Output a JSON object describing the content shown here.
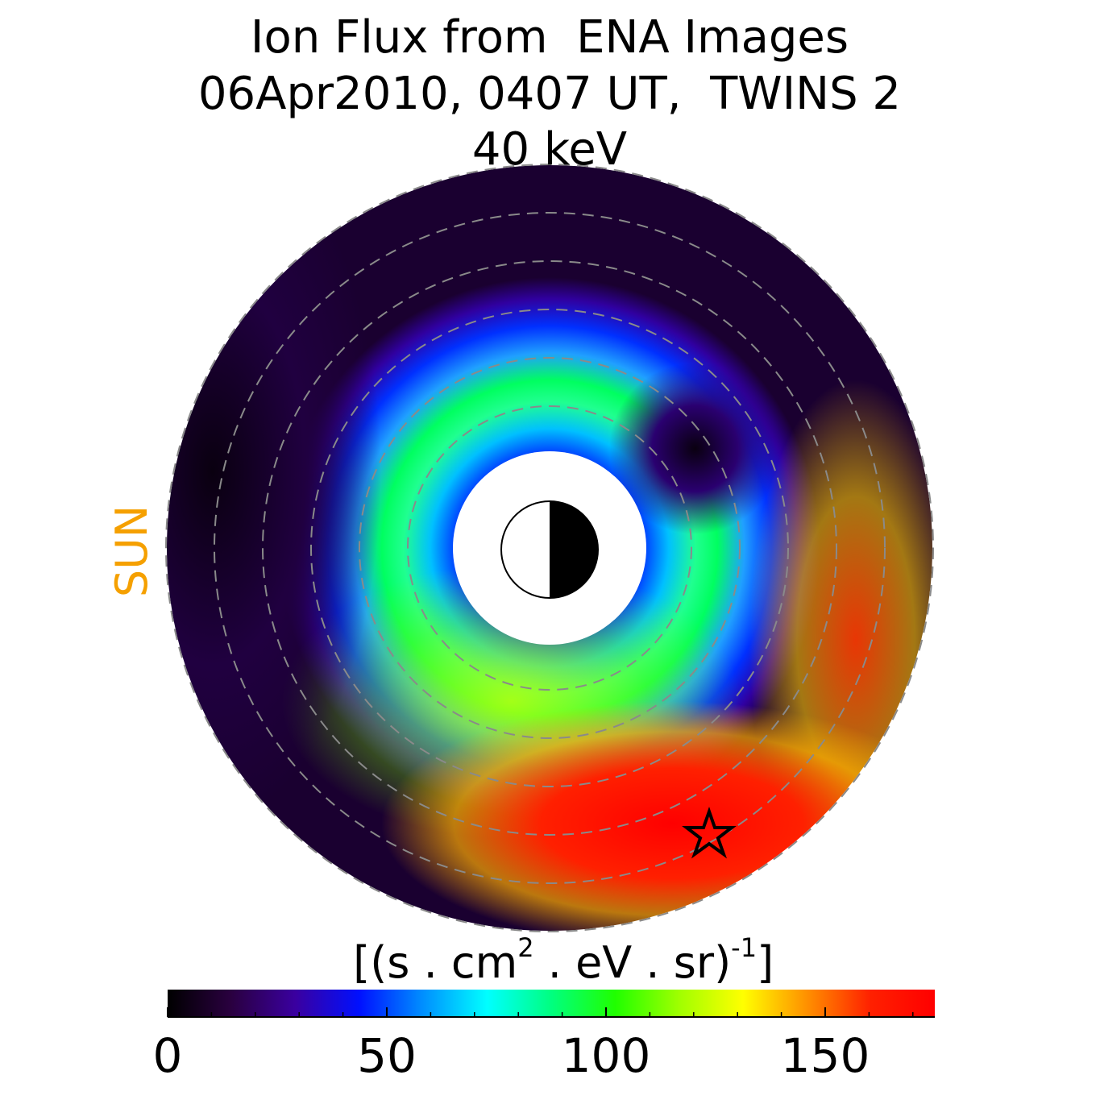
{
  "chart_data": {
    "type": "polar-image",
    "title": [
      "Ion Flux from  ENA Images",
      "06Apr2010, 0407 UT,  TWINS 2",
      "40 keV"
    ],
    "annotation": "SUN",
    "annotation_color": "#f5a000",
    "colorbar_label": [
      "[(s . cm",
      "2",
      " . eV . sr)",
      "-1",
      "]"
    ],
    "clim": [
      0,
      175
    ],
    "cticks": [
      0,
      50,
      100,
      150
    ],
    "cminorticks": [
      10,
      20,
      30,
      40,
      60,
      70,
      80,
      90,
      110,
      120,
      130,
      140,
      160,
      170
    ],
    "colormap": [
      "#000000",
      "#2a0040",
      "#3a00a0",
      "#0010ff",
      "#0090ff",
      "#00ffff",
      "#00ff80",
      "#20ff00",
      "#a0ff00",
      "#ffff00",
      "#ff9000",
      "#ff2000",
      "#ff0000"
    ]
  }
}
